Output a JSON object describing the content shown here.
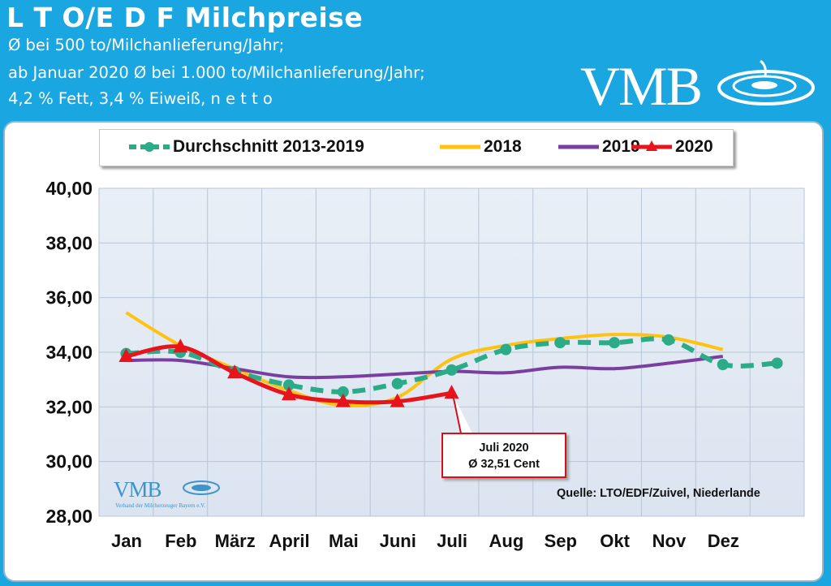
{
  "header": {
    "title": "L T O/E D F Milchpreise",
    "line1": "Ø bei 500 to/Milchanlieferung/Jahr;",
    "line2": "ab Januar 2020 Ø bei 1.000 to/Milchanlieferung/Jahr;",
    "line3": "4,2 % Fett, 3,4 % Eiweiß, n e t t o",
    "logo": "VMB"
  },
  "watermark": {
    "logo": "VMB",
    "sub": "Verband der Milcherzeuger Bayern e.V."
  },
  "callout": {
    "line1": "Juli 2020",
    "line2": "Ø 32,51 Cent"
  },
  "source": "Quelle: LTO/EDF/Zuivel, Niederlande",
  "chart_data": {
    "type": "line",
    "categories": [
      "Jan",
      "Feb",
      "März",
      "April",
      "Mai",
      "Juni",
      "Juli",
      "Aug",
      "Sep",
      "Okt",
      "Nov",
      "Dez",
      ""
    ],
    "ylim": [
      28,
      40
    ],
    "yticks": [
      "28,00",
      "30,00",
      "32,00",
      "34,00",
      "36,00",
      "38,00",
      "40,00"
    ],
    "grid": true,
    "legend_position": "top",
    "series": [
      {
        "name": "Durchschnitt 2013-2019",
        "color": "#2bab88",
        "style": "dashed-markers",
        "values": [
          33.95,
          34.0,
          33.3,
          32.8,
          32.55,
          32.85,
          33.35,
          34.1,
          34.35,
          34.35,
          34.45,
          33.55,
          33.6
        ]
      },
      {
        "name": "2018",
        "color": "#ffc20e",
        "style": "solid",
        "values": [
          35.45,
          34.25,
          33.4,
          32.6,
          32.05,
          32.35,
          33.75,
          34.25,
          34.5,
          34.65,
          34.55,
          34.1,
          null
        ]
      },
      {
        "name": "2019",
        "color": "#7a3ea0",
        "style": "solid",
        "values": [
          33.7,
          33.7,
          33.4,
          33.1,
          33.1,
          33.2,
          33.3,
          33.25,
          33.45,
          33.4,
          33.6,
          33.85,
          null
        ]
      },
      {
        "name": "2020",
        "color": "#e8141c",
        "style": "triangles",
        "values": [
          33.85,
          34.2,
          33.25,
          32.45,
          32.2,
          32.2,
          32.51,
          null,
          null,
          null,
          null,
          null,
          null
        ]
      }
    ]
  }
}
